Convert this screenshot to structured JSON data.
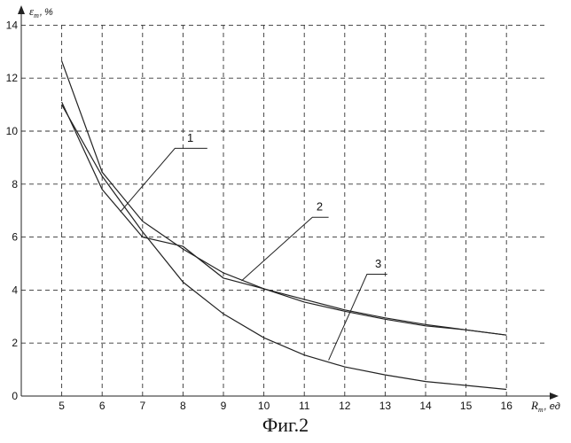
{
  "figure": {
    "caption": "Фиг.2"
  },
  "chart_data": {
    "type": "line",
    "x_label": "R",
    "x_sub": "т",
    "x_unit": "ед",
    "y_label": "ε",
    "y_sub": "т",
    "y_unit": "%",
    "xlim": [
      4,
      17
    ],
    "ylim": [
      0,
      14
    ],
    "x_ticks": [
      5,
      6,
      7,
      8,
      9,
      10,
      11,
      12,
      13,
      14,
      15,
      16
    ],
    "y_ticks": [
      0,
      2,
      4,
      6,
      8,
      10,
      12,
      14
    ],
    "grid": true,
    "series": [
      {
        "label": "1",
        "x": [
          5,
          6,
          7,
          8,
          9,
          10,
          11,
          12,
          13,
          14,
          15,
          16
        ],
        "values": [
          11.1,
          7.8,
          6.0,
          5.65,
          4.45,
          4.05,
          3.55,
          3.2,
          2.9,
          2.65,
          2.5,
          2.3
        ]
      },
      {
        "label": "2",
        "x": [
          5,
          6,
          7,
          8,
          9,
          10,
          11,
          12,
          13,
          14,
          15,
          16
        ],
        "values": [
          12.65,
          8.45,
          6.6,
          5.55,
          4.65,
          4.05,
          3.65,
          3.25,
          2.95,
          2.7,
          2.5,
          2.3
        ]
      },
      {
        "label": "3",
        "x": [
          5,
          6,
          7,
          8,
          9,
          10,
          11,
          12,
          13,
          14,
          15,
          16
        ],
        "values": [
          11.0,
          8.3,
          6.2,
          4.3,
          3.1,
          2.2,
          1.55,
          1.1,
          0.8,
          0.55,
          0.4,
          0.25
        ]
      }
    ]
  }
}
